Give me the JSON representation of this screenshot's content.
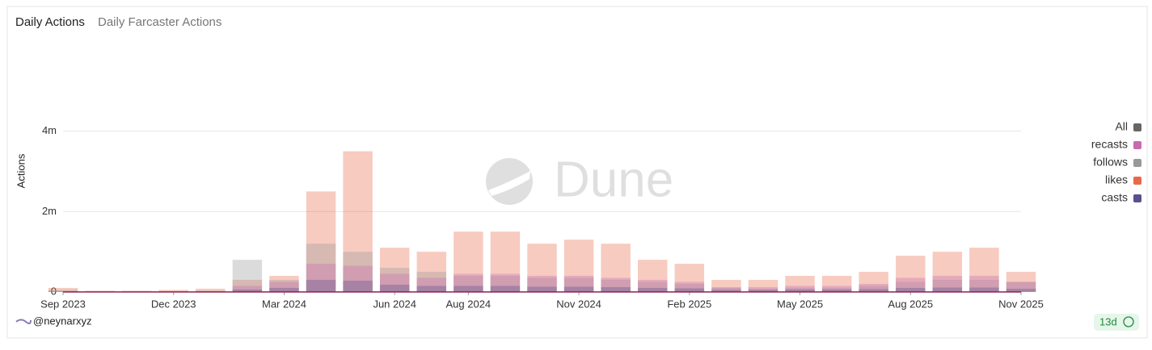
{
  "tabs": [
    "Daily Actions",
    "Daily Farcaster Actions"
  ],
  "footer": {
    "handle": "@neynarxyz",
    "badge": "13d"
  },
  "watermark": "Dune",
  "legend_all": {
    "label": "All",
    "color": "#666666"
  },
  "chart_data": {
    "type": "bar",
    "y_label": "Actions",
    "x": [
      "2023-09",
      "2023-10",
      "2023-11",
      "2023-12",
      "2024-01",
      "2024-02",
      "2024-03",
      "2024-04",
      "2024-05",
      "2024-06",
      "2024-07",
      "2024-08",
      "2024-09",
      "2024-10",
      "2024-11",
      "2024-12",
      "2025-01",
      "2025-02",
      "2025-03",
      "2025-04",
      "2025-05",
      "2025-06",
      "2025-07",
      "2025-08",
      "2025-09",
      "2025-10",
      "2025-11"
    ],
    "xticks": [
      {
        "value": "2023-09",
        "label": "Sep 2023"
      },
      {
        "value": "2023-12",
        "label": "Dec 2023"
      },
      {
        "value": "2024-03",
        "label": "Mar 2024"
      },
      {
        "value": "2024-06",
        "label": "Jun 2024"
      },
      {
        "value": "2024-08",
        "label": "Aug 2024"
      },
      {
        "value": "2024-11",
        "label": "Nov 2024"
      },
      {
        "value": "2025-02",
        "label": "Feb 2025"
      },
      {
        "value": "2025-05",
        "label": "May 2025"
      },
      {
        "value": "2025-08",
        "label": "Aug 2025"
      },
      {
        "value": "2025-11",
        "label": "Nov 2025"
      }
    ],
    "ylim": [
      0,
      6000000
    ],
    "yticks": [
      0,
      {
        "value": 2000000,
        "label": "2m"
      },
      {
        "value": 4000000,
        "label": "4m"
      }
    ],
    "grid": true,
    "legend": "right",
    "series": [
      {
        "name": "likes",
        "color": "#e8694a",
        "values": [
          100000,
          30000,
          30000,
          50000,
          80000,
          300000,
          400000,
          2500000,
          3500000,
          1100000,
          1000000,
          1500000,
          1500000,
          1200000,
          1300000,
          1200000,
          800000,
          700000,
          300000,
          300000,
          400000,
          400000,
          500000,
          900000,
          1000000,
          1100000,
          500000
        ]
      },
      {
        "name": "follows",
        "color": "#999999",
        "values": [
          50000,
          10000,
          10000,
          20000,
          30000,
          800000,
          300000,
          1200000,
          1000000,
          600000,
          500000,
          400000,
          400000,
          350000,
          350000,
          300000,
          250000,
          200000,
          100000,
          80000,
          100000,
          100000,
          150000,
          250000,
          300000,
          300000,
          250000
        ]
      },
      {
        "name": "recasts",
        "color": "#c76bb0",
        "values": [
          20000,
          5000,
          5000,
          10000,
          20000,
          150000,
          250000,
          700000,
          650000,
          450000,
          350000,
          450000,
          450000,
          400000,
          400000,
          350000,
          300000,
          250000,
          120000,
          120000,
          150000,
          150000,
          200000,
          350000,
          400000,
          400000,
          250000
        ]
      },
      {
        "name": "casts",
        "color": "#5b4f8f",
        "values": [
          10000,
          3000,
          3000,
          5000,
          10000,
          60000,
          100000,
          300000,
          280000,
          180000,
          150000,
          150000,
          150000,
          130000,
          130000,
          120000,
          100000,
          90000,
          50000,
          50000,
          60000,
          60000,
          70000,
          100000,
          110000,
          110000,
          80000
        ]
      }
    ]
  }
}
